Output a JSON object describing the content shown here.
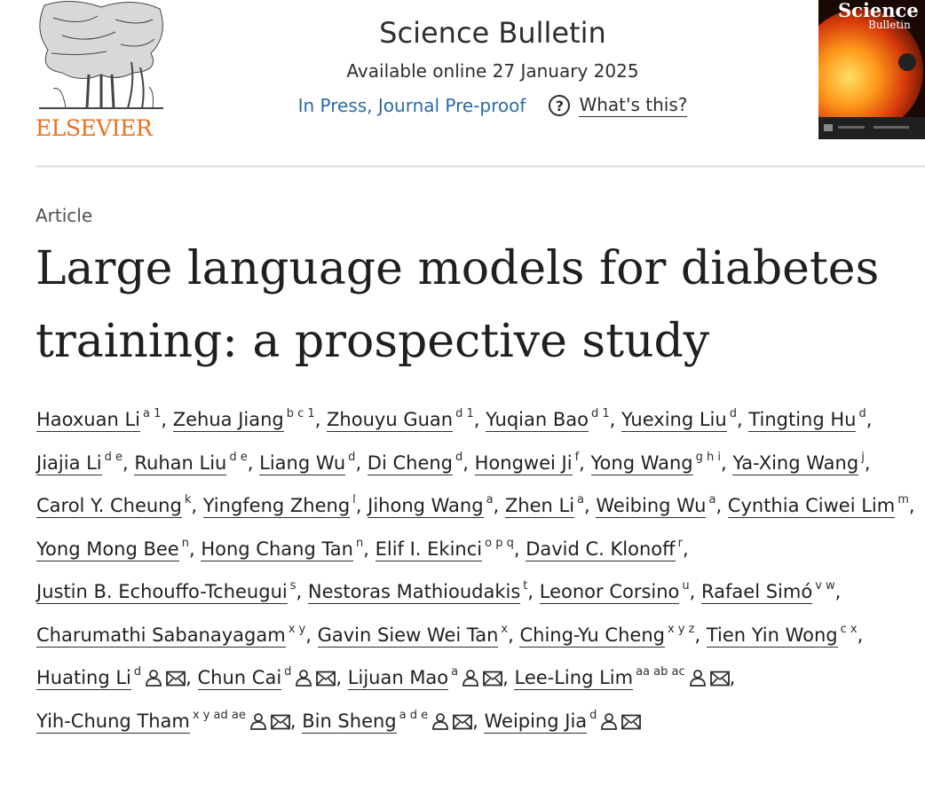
{
  "publisher": {
    "name": "ELSEVIER"
  },
  "journal": {
    "title": "Science Bulletin",
    "available_online": "Available online 27 January 2025",
    "status_link": "In Press, Journal Pre-proof",
    "whats_this": "What's this?",
    "cover_title_line1": "Science",
    "cover_title_line2": "Bulletin"
  },
  "article": {
    "type": "Article",
    "title": "Large language models for diabetes training: a prospective study"
  },
  "authors": [
    {
      "name": "Haoxuan Li",
      "aff": "a 1",
      "corresponding": false
    },
    {
      "name": "Zehua Jiang",
      "aff": "b c 1",
      "corresponding": false
    },
    {
      "name": "Zhouyu Guan",
      "aff": "d 1",
      "corresponding": false
    },
    {
      "name": "Yuqian Bao",
      "aff": "d 1",
      "corresponding": false
    },
    {
      "name": "Yuexing Liu",
      "aff": "d",
      "corresponding": false
    },
    {
      "name": "Tingting Hu",
      "aff": "d",
      "corresponding": false
    },
    {
      "name": "Jiajia Li",
      "aff": "d e",
      "corresponding": false
    },
    {
      "name": "Ruhan Liu",
      "aff": "d e",
      "corresponding": false
    },
    {
      "name": "Liang Wu",
      "aff": "d",
      "corresponding": false
    },
    {
      "name": "Di Cheng",
      "aff": "d",
      "corresponding": false
    },
    {
      "name": "Hongwei Ji",
      "aff": "f",
      "corresponding": false
    },
    {
      "name": "Yong Wang",
      "aff": "g h i",
      "corresponding": false
    },
    {
      "name": "Ya-Xing Wang",
      "aff": "j",
      "corresponding": false
    },
    {
      "name": "Carol Y. Cheung",
      "aff": "k",
      "corresponding": false
    },
    {
      "name": "Yingfeng Zheng",
      "aff": "l",
      "corresponding": false
    },
    {
      "name": "Jihong Wang",
      "aff": "a",
      "corresponding": false
    },
    {
      "name": "Zhen Li",
      "aff": "a",
      "corresponding": false
    },
    {
      "name": "Weibing Wu",
      "aff": "a",
      "corresponding": false
    },
    {
      "name": "Cynthia Ciwei Lim",
      "aff": "m",
      "corresponding": false
    },
    {
      "name": "Yong Mong Bee",
      "aff": "n",
      "corresponding": false
    },
    {
      "name": "Hong Chang Tan",
      "aff": "n",
      "corresponding": false
    },
    {
      "name": "Elif I. Ekinci",
      "aff": "o p q",
      "corresponding": false
    },
    {
      "name": "David C. Klonoff",
      "aff": "r",
      "corresponding": false
    },
    {
      "name": "Justin B. Echouffo-Tcheugui",
      "aff": "s",
      "corresponding": false
    },
    {
      "name": "Nestoras Mathioudakis",
      "aff": "t",
      "corresponding": false
    },
    {
      "name": "Leonor Corsino",
      "aff": "u",
      "corresponding": false
    },
    {
      "name": "Rafael Simó",
      "aff": "v w",
      "corresponding": false
    },
    {
      "name": "Charumathi Sabanayagam",
      "aff": "x y",
      "corresponding": false
    },
    {
      "name": "Gavin Siew Wei Tan",
      "aff": "x",
      "corresponding": false
    },
    {
      "name": "Ching-Yu Cheng",
      "aff": "x y z",
      "corresponding": false
    },
    {
      "name": "Tien Yin Wong",
      "aff": "c x",
      "corresponding": false
    },
    {
      "name": "Huating Li",
      "aff": "d",
      "corresponding": true
    },
    {
      "name": "Chun Cai",
      "aff": "d",
      "corresponding": true
    },
    {
      "name": "Lijuan Mao",
      "aff": "a",
      "corresponding": true
    },
    {
      "name": "Lee-Ling Lim",
      "aff": "aa ab ac",
      "corresponding": true
    },
    {
      "name": "Yih-Chung Tham",
      "aff": "x y ad ae",
      "corresponding": true
    },
    {
      "name": "Bin Sheng",
      "aff": "a d e",
      "corresponding": true
    },
    {
      "name": "Weiping Jia",
      "aff": "d",
      "corresponding": true
    }
  ],
  "colors": {
    "publisher_orange": "#e9711c",
    "link_blue": "#2a6aa8",
    "text": "#1f1f1f"
  },
  "icons": [
    "elsevier-tree-logo",
    "question-circle-icon",
    "person-icon",
    "envelope-icon"
  ]
}
